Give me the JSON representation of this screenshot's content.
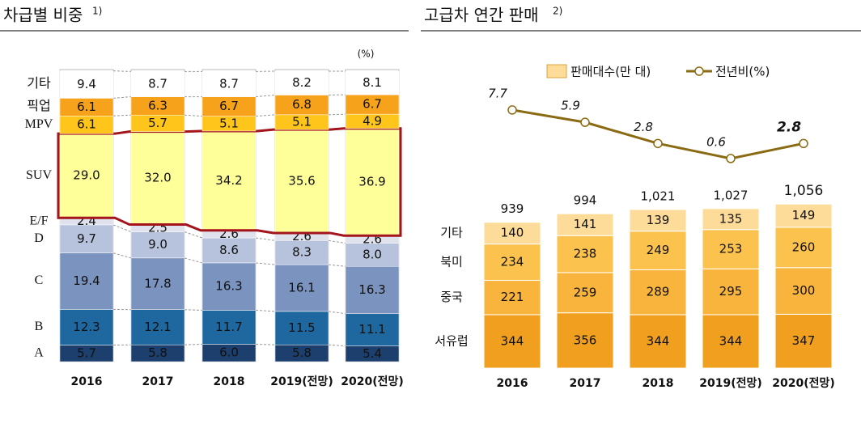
{
  "chart_data": [
    {
      "type": "stacked_bar",
      "title": "차급별 비중",
      "title_note": "1)",
      "unit": "(%)",
      "categories": [
        "2016",
        "2017",
        "2018",
        "2019(전망)",
        "2020(전망)"
      ],
      "highlight": "SUV",
      "series": [
        {
          "name": "A",
          "color": "#1c3f6e",
          "values": [
            5.7,
            5.8,
            6.0,
            5.8,
            5.4
          ],
          "value_labels": [
            "5.7",
            "5.8",
            "6.0",
            "5.8",
            "5.4"
          ]
        },
        {
          "name": "B",
          "color": "#1f689f",
          "values": [
            12.3,
            12.1,
            11.7,
            11.5,
            11.1
          ]
        },
        {
          "name": "C",
          "color": "#7b93bf",
          "values": [
            19.4,
            17.8,
            16.3,
            16.1,
            16.3
          ]
        },
        {
          "name": "D",
          "color": "#b7c3dc",
          "values": [
            9.7,
            9.0,
            8.6,
            8.3,
            8.0
          ],
          "value_labels": [
            "9.7",
            "9.0",
            "8.6",
            "8.3",
            "8.0"
          ]
        },
        {
          "name": "E/F",
          "color": "#dfe2ec",
          "values": [
            2.4,
            2.5,
            2.6,
            2.6,
            2.6
          ]
        },
        {
          "name": "SUV",
          "color": "#ffff99",
          "values": [
            29.0,
            32.0,
            34.2,
            35.6,
            36.9
          ],
          "value_labels": [
            "29.0",
            "32.0",
            "34.2",
            "35.6",
            "36.9"
          ]
        },
        {
          "name": "MPV",
          "color": "#ffc51a",
          "values": [
            6.1,
            5.7,
            5.1,
            5.1,
            4.9
          ]
        },
        {
          "name": "픽업",
          "color": "#f7a21b",
          "values": [
            6.1,
            6.3,
            6.7,
            6.8,
            6.7
          ]
        },
        {
          "name": "기타",
          "color": "#ffffff",
          "values": [
            9.4,
            8.7,
            8.7,
            8.2,
            8.1
          ]
        }
      ]
    },
    {
      "type": "bar_line",
      "title": "고급차 연간 판매",
      "title_note": "2)",
      "categories": [
        "2016",
        "2017",
        "2018",
        "2019(전망)",
        "2020(전망)"
      ],
      "bar_legend": "판매대수(만 대)",
      "bar_legend_color": "#fddc99",
      "series": [
        {
          "name": "서유럽",
          "color": "#f0a01e",
          "values": [
            344,
            356,
            344,
            344,
            347
          ]
        },
        {
          "name": "중국",
          "color": "#f8b43c",
          "values": [
            221,
            259,
            289,
            295,
            300
          ]
        },
        {
          "name": "북미",
          "color": "#fbc24e",
          "values": [
            234,
            238,
            249,
            253,
            260
          ]
        },
        {
          "name": "기타",
          "color": "#fddc99",
          "values": [
            140,
            141,
            139,
            135,
            149
          ]
        }
      ],
      "totals": {
        "values": [
          939,
          994,
          1021,
          1027,
          1056
        ],
        "value_labels": [
          "939",
          "994",
          "1,021",
          "1,027",
          "1,056"
        ]
      },
      "line": {
        "name": "전년비(%)",
        "color": "#8a6a12",
        "axis": "y2",
        "values": [
          7.7,
          5.9,
          2.8,
          0.6,
          2.8
        ]
      }
    }
  ]
}
